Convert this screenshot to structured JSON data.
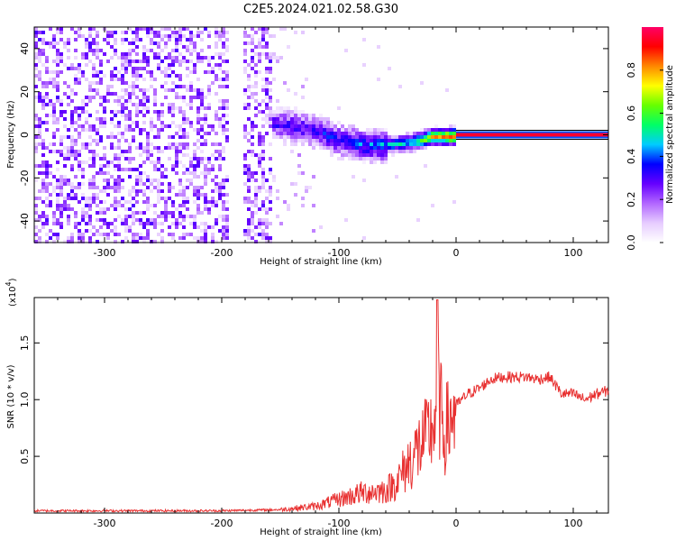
{
  "title": "C2E5.2024.021.02.58.G30",
  "chart_data": [
    {
      "type": "heatmap",
      "xlabel": "Height of straight line (km)",
      "ylabel": "Frequency (Hz)",
      "xlim": [
        -360,
        130
      ],
      "ylim": [
        -50,
        50
      ],
      "xticks": [
        -300,
        -200,
        -100,
        0,
        100
      ],
      "yticks": [
        -40,
        -20,
        0,
        20,
        40
      ],
      "colorbar": {
        "label": "Normalized spectral amplitude",
        "range": [
          0.0,
          1.0
        ],
        "ticks": [
          0.0,
          0.2,
          0.4,
          0.6,
          0.8
        ],
        "colors": [
          "#ffffff",
          "#e6ccff",
          "#b266ff",
          "#6600ff",
          "#0000ff",
          "#00ccff",
          "#00ff66",
          "#66ff00",
          "#ffff00",
          "#ff8800",
          "#ff0000",
          "#ff0066"
        ]
      },
      "ridge": [
        {
          "x": -185,
          "f": 8,
          "amp": 0.3
        },
        {
          "x": -160,
          "f": 6,
          "amp": 0.3
        },
        {
          "x": -140,
          "f": 5,
          "amp": 0.3
        },
        {
          "x": -120,
          "f": 2,
          "amp": 0.35
        },
        {
          "x": -100,
          "f": -2,
          "amp": 0.35
        },
        {
          "x": -80,
          "f": -4,
          "amp": 0.4
        },
        {
          "x": -60,
          "f": -4,
          "amp": 0.45
        },
        {
          "x": -40,
          "f": -3,
          "amp": 0.5
        },
        {
          "x": -20,
          "f": 0,
          "amp": 0.8
        },
        {
          "x": 0,
          "f": 0,
          "amp": 0.9
        },
        {
          "x": 130,
          "f": 0,
          "amp": 0.9
        }
      ],
      "noise_extent_x": [
        -360,
        -160
      ]
    },
    {
      "type": "line",
      "xlabel": "Height of straight line (km)",
      "ylabel": "SNR (10 * v/v)",
      "exponent_label": "(x10",
      "exponent": "4",
      "exponent_close": ")",
      "xlim": [
        -360,
        130
      ],
      "ylim": [
        0,
        1.9
      ],
      "xticks": [
        -300,
        -200,
        -100,
        0,
        100
      ],
      "yticks": [
        0.5,
        1.0,
        1.5
      ],
      "color": "#e83030",
      "x": [
        -360,
        -300,
        -250,
        -200,
        -150,
        -120,
        -100,
        -80,
        -60,
        -50,
        -40,
        -30,
        -20,
        -15,
        -10,
        0,
        10,
        20,
        30,
        40,
        50,
        60,
        70,
        80,
        90,
        100,
        110,
        120,
        130
      ],
      "y": [
        0.02,
        0.02,
        0.02,
        0.02,
        0.03,
        0.06,
        0.12,
        0.18,
        0.2,
        0.28,
        0.45,
        0.6,
        0.75,
        1.0,
        0.7,
        0.95,
        1.05,
        1.1,
        1.18,
        1.2,
        1.2,
        1.2,
        1.18,
        1.2,
        1.05,
        1.05,
        1.0,
        1.05,
        1.08
      ]
    }
  ]
}
